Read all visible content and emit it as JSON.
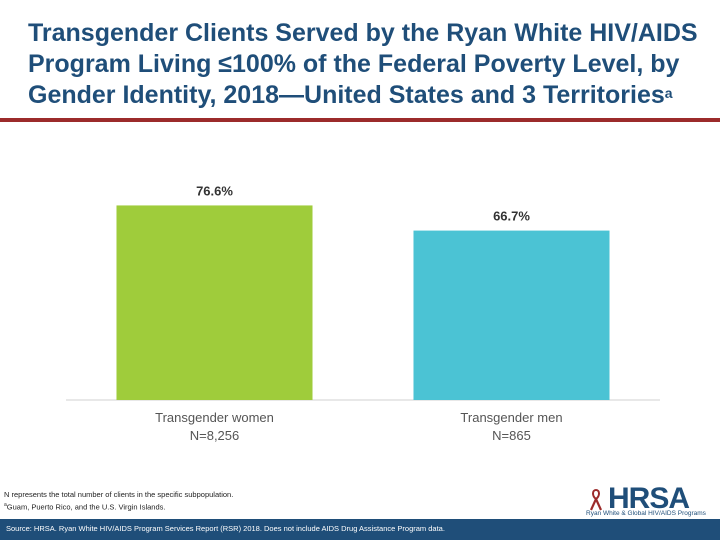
{
  "header": {
    "title": "Transgender Clients Served by the Ryan White HIV/AIDS Program Living ≤100% of the Federal Poverty Level, by Gender Identity, 2018—United States and 3 Territories",
    "title_sup": "a"
  },
  "chart_data": {
    "type": "bar",
    "categories": [
      "Transgender women",
      "Transgender men"
    ],
    "category_n": [
      "N=8,256",
      "N=865"
    ],
    "values": [
      76.6,
      66.7
    ],
    "value_labels": [
      "76.6%",
      "66.7%"
    ],
    "colors": [
      "#9fcc3b",
      "#4bc3d4"
    ],
    "ylim": [
      0,
      100
    ],
    "xlabel": "",
    "ylabel": ""
  },
  "footnotes": {
    "n_note": "N represents the total number of clients in the specific subpopulation.",
    "a_sup": "a",
    "a_note": "Guam, Puerto Rico, and the U.S. Virgin Islands."
  },
  "logo": {
    "text": "HRSA",
    "subtitle": "Ryan White & Global HIV/AIDS Programs"
  },
  "source": "Source: HRSA. Ryan White HIV/AIDS Program Services Report (RSR) 2018. Does not include AIDS Drug Assistance Program data.",
  "colors": {
    "title": "#1f4e79",
    "rule": "#9c2b2b",
    "source_bar": "#1f4e79"
  }
}
